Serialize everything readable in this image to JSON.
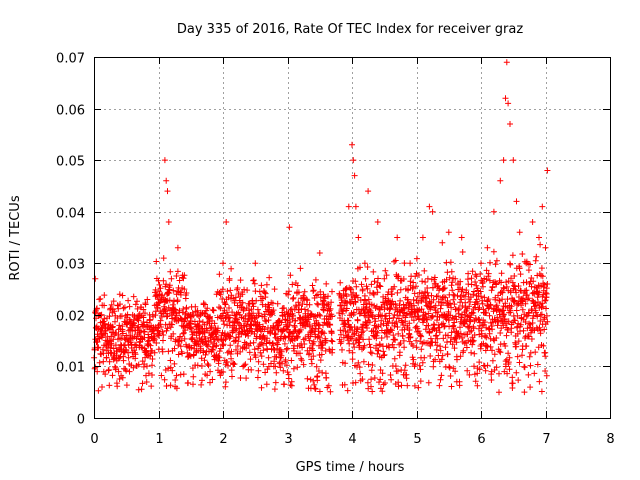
{
  "chart_data": {
    "type": "scatter",
    "title": "Day 335 of 2016, Rate Of TEC Index for receiver graz",
    "xlabel": "GPS time / hours",
    "ylabel": "ROTI / TECUs",
    "xlim": [
      0,
      8
    ],
    "ylim": [
      0,
      0.07
    ],
    "xticks": [
      0,
      1,
      2,
      3,
      4,
      5,
      6,
      7,
      8
    ],
    "xtick_labels": [
      "0",
      "1",
      "2",
      "3",
      "4",
      "5",
      "6",
      "7",
      "8"
    ],
    "yticks": [
      0,
      0.01,
      0.02,
      0.03,
      0.04,
      0.05,
      0.06,
      0.07
    ],
    "ytick_labels": [
      "0",
      "0.01",
      "0.02",
      "0.03",
      "0.04",
      "0.05",
      "0.06",
      "0.07"
    ],
    "grid": true,
    "marker": "plus",
    "color": "#ff0000",
    "data_gap_hours": [
      3.7,
      3.8
    ],
    "series": [
      {
        "name": "ROTI",
        "x": [
          0.02,
          0.05,
          0.08,
          0.15,
          0.25,
          0.3,
          0.4,
          0.5,
          0.55,
          0.6,
          0.7,
          0.8,
          0.9,
          1.0,
          1.08,
          1.1,
          1.12,
          1.14,
          1.16,
          1.2,
          1.3,
          1.32,
          1.4,
          1.5,
          1.6,
          1.7,
          1.8,
          1.9,
          2.0,
          2.05,
          2.1,
          2.2,
          2.3,
          2.4,
          2.5,
          2.6,
          2.7,
          2.8,
          2.9,
          3.0,
          3.03,
          3.1,
          3.2,
          3.3,
          3.4,
          3.5,
          3.55,
          3.6,
          3.68,
          3.82,
          3.9,
          3.95,
          4.0,
          4.02,
          4.04,
          4.06,
          4.1,
          4.2,
          4.25,
          4.3,
          4.4,
          4.5,
          4.6,
          4.7,
          4.8,
          4.9,
          5.0,
          5.1,
          5.2,
          5.25,
          5.3,
          5.4,
          5.5,
          5.6,
          5.7,
          5.8,
          5.9,
          6.0,
          6.1,
          6.2,
          6.3,
          6.35,
          6.38,
          6.4,
          6.42,
          6.45,
          6.5,
          6.55,
          6.6,
          6.7,
          6.8,
          6.9,
          6.95,
          7.0,
          7.03
        ],
        "y": [
          0.027,
          0.009,
          0.023,
          0.018,
          0.021,
          0.012,
          0.024,
          0.016,
          0.009,
          0.02,
          0.017,
          0.022,
          0.013,
          0.018,
          0.031,
          0.05,
          0.046,
          0.044,
          0.038,
          0.027,
          0.033,
          0.015,
          0.025,
          0.012,
          0.02,
          0.022,
          0.009,
          0.024,
          0.03,
          0.038,
          0.027,
          0.015,
          0.024,
          0.02,
          0.03,
          0.012,
          0.022,
          0.025,
          0.017,
          0.02,
          0.037,
          0.014,
          0.029,
          0.022,
          0.012,
          0.032,
          0.018,
          0.026,
          0.015,
          0.017,
          0.025,
          0.041,
          0.053,
          0.05,
          0.047,
          0.041,
          0.035,
          0.03,
          0.044,
          0.02,
          0.038,
          0.027,
          0.017,
          0.035,
          0.022,
          0.03,
          0.028,
          0.035,
          0.041,
          0.04,
          0.026,
          0.034,
          0.036,
          0.027,
          0.035,
          0.028,
          0.022,
          0.03,
          0.033,
          0.04,
          0.046,
          0.05,
          0.062,
          0.069,
          0.061,
          0.057,
          0.05,
          0.042,
          0.036,
          0.03,
          0.038,
          0.035,
          0.041,
          0.033,
          0.048
        ]
      }
    ]
  }
}
